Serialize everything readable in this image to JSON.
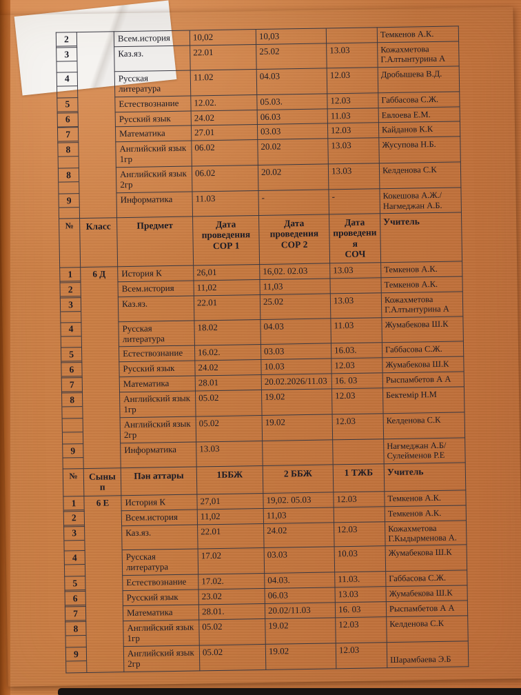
{
  "colors": {
    "desk_background": "#c67940",
    "desk_left_edge": "#a4561f",
    "paper": "#efedeb",
    "table_line": "#383842",
    "text": "#1b1b25",
    "bottom_dark_bar": "#181311"
  },
  "table": {
    "col_headers_ru": {
      "num": "№",
      "class": "Класс",
      "subject": "Предмет",
      "sor1": "Дата\nпроведения\nСОР 1",
      "sor2": "Дата\nпроведения\nСОР 2",
      "soch": "Дата\nпроведения\nСОЧ",
      "teacher": "Учитель"
    },
    "col_headers_kz": {
      "num": "№",
      "class": "Сынып",
      "subject": "Пән аттары",
      "sor1": "1ББЖ",
      "sor2": "2 ББЖ",
      "soch": "1 ТЖБ",
      "teacher": "Учитель"
    },
    "sections": [
      {
        "name": "section-top",
        "class_label": "",
        "header": null,
        "rows": [
          {
            "num": "2",
            "subject": "Всем.история",
            "sor1": "10,02",
            "sor2": "10,03",
            "soch": "",
            "teacher": "Темкенов А.К."
          },
          {
            "num": "3",
            "subject": "Каз.яз.",
            "sor1": "22.01",
            "sor2": "25.02",
            "soch": "13.03",
            "teacher": "Кожахметова Г.Алтынтурина А"
          },
          {
            "num": "4",
            "subject": "Русская литература",
            "sor1": "11.02",
            "sor2": "04.03",
            "soch": "12.03",
            "teacher": "Дробышева В.Д."
          },
          {
            "num": "5",
            "subject": "Естествознание",
            "sor1": "12.02.",
            "sor2": "05.03.",
            "soch": "12.03",
            "teacher": "Габбасова С.Ж."
          },
          {
            "num": "6",
            "subject": "Русский язык",
            "sor1": "24.02",
            "sor2": "06.03",
            "soch": "11.03",
            "teacher": "Евлоева Е.М."
          },
          {
            "num": "7",
            "subject": "Математика",
            "sor1": "27.01",
            "sor2": "03.03",
            "soch": "12.03",
            "teacher": "Кайданов К.К"
          },
          {
            "num": "8",
            "subject": "Английский язык 1гр",
            "sor1": "06.02",
            "sor2": "20.02",
            "soch": "13.03",
            "teacher": "Жусупова Н.Б."
          },
          {
            "num": "8",
            "subject": "Английский язык 2гр",
            "sor1": "06.02",
            "sor2": "20.02",
            "soch": "13.03",
            "teacher": "Келденова С.К"
          },
          {
            "num": "9",
            "subject": "Информатика",
            "sor1": "11.03",
            "sor2": "-",
            "soch": "-",
            "teacher": "Кокешова А.Ж./ Нағмеджан А.Б."
          }
        ]
      },
      {
        "name": "section-6d",
        "class_label": "6 Д",
        "header": "ru",
        "rows": [
          {
            "num": "1",
            "subject": "История К",
            "sor1": "26,01",
            "sor2": "16,02. 02.03",
            "soch": "13.03",
            "teacher": "Темкенов А.К."
          },
          {
            "num": "2",
            "subject": "Всем.история",
            "sor1": "11,02",
            "sor2": "11,03",
            "soch": "",
            "teacher": "Темкенов А.К."
          },
          {
            "num": "3",
            "subject": "Каз.яз.",
            "sor1": "22.01",
            "sor2": "25.02",
            "soch": "13.03",
            "teacher": "Кожахметова Г.Алтынтурина А"
          },
          {
            "num": "4",
            "subject": "Русская литература",
            "sor1": "18.02",
            "sor2": "04.03",
            "soch": "11.03",
            "teacher": "Жумабекова Ш.К"
          },
          {
            "num": "5",
            "subject": "Естествознание",
            "sor1": "16.02.",
            "sor2": "03.03",
            "soch": "16.03.",
            "teacher": "Габбасова С.Ж."
          },
          {
            "num": "6",
            "subject": "Русский язык",
            "sor1": "24.02",
            "sor2": "10.03",
            "soch": "12.03",
            "teacher": "Жумабекова Ш.К"
          },
          {
            "num": "7",
            "subject": "Математика",
            "sor1": "28.01",
            "sor2": "20.02.2026/11.03",
            "soch": "16. 03",
            "teacher": "Рыспамбетов А А"
          },
          {
            "num": "8",
            "subject": "Английский язык 1гр",
            "sor1": "05.02",
            "sor2": "19.02",
            "soch": "12.03",
            "teacher": "Бектемір Н.М"
          },
          {
            "num": "",
            "subject": "Английский язык 2гр",
            "sor1": "05.02",
            "sor2": "19.02",
            "soch": "12.03",
            "teacher": "Келденова С.К"
          },
          {
            "num": "9",
            "subject": "Информатика",
            "sor1": "13.03",
            "sor2": "",
            "soch": "",
            "teacher": "Нағмеджан А.Б/Сулейменов Р.Е"
          }
        ]
      },
      {
        "name": "section-6e",
        "class_label": "6 Е",
        "header": "kz",
        "rows": [
          {
            "num": "1",
            "subject": "История К",
            "sor1": "27,01",
            "sor2": "19,02. 05.03",
            "soch": "12.03",
            "teacher": "Темкенов А.К."
          },
          {
            "num": "2",
            "subject": "Всем.история",
            "sor1": "11,02",
            "sor2": "11,03",
            "soch": "",
            "teacher": "Темкенов А.К."
          },
          {
            "num": "3",
            "subject": "Каз.яз.",
            "sor1": "22.01",
            "sor2": "24.02",
            "soch": "12.03",
            "teacher": "Кожахметова Г.Кыдырменова А."
          },
          {
            "num": "4",
            "subject": "Русская литература",
            "sor1": "17.02",
            "sor2": "03.03",
            "soch": "10.03",
            "teacher": "Жумабекова Ш.К"
          },
          {
            "num": "5",
            "subject": "Естествознание",
            "sor1": "17.02.",
            "sor2": "04.03.",
            "soch": "11.03.",
            "teacher": "Габбасова С.Ж."
          },
          {
            "num": "6",
            "subject": "Русский язык",
            "sor1": "23.02",
            "sor2": "06.03",
            "soch": "13.03",
            "teacher": "Жумабекова Ш.К"
          },
          {
            "num": "7",
            "subject": "Математика",
            "sor1": "28.01.",
            "sor2": "20.02/11.03",
            "soch": "16. 03",
            "teacher": "Рыспамбетов А А"
          },
          {
            "num": "8",
            "subject": "Английский язык 1гр",
            "sor1": "05.02",
            "sor2": "19.02",
            "soch": "12.03",
            "teacher": "Келденова С.К"
          },
          {
            "num": "9",
            "subject": "Английский язык 2гр",
            "sor1": "05.02",
            "sor2": "19.02",
            "soch": "12.03",
            "teacher": "Шарамбаева Э.Б",
            "teacher_bottom": true
          }
        ]
      }
    ]
  }
}
